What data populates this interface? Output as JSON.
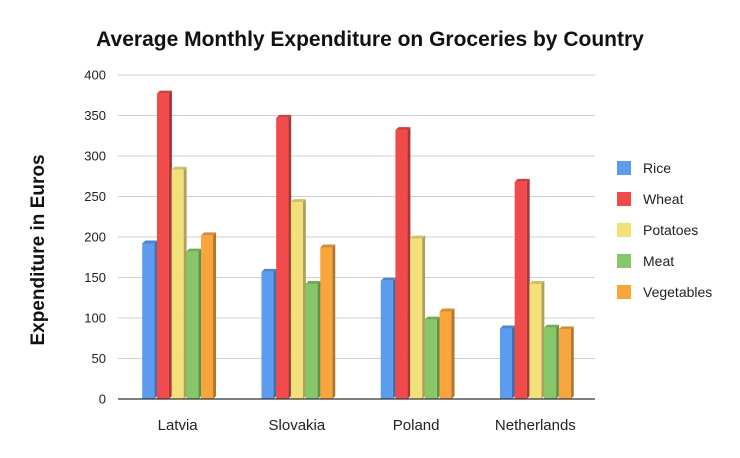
{
  "chart_data": {
    "type": "bar",
    "title": "Average Monthly Expenditure on Groceries by Country",
    "xlabel": "",
    "ylabel": "Expenditure in Euros",
    "ylim": [
      0,
      400
    ],
    "yticks": [
      0,
      50,
      100,
      150,
      200,
      250,
      300,
      350,
      400
    ],
    "grid": true,
    "legend_position": "right",
    "categories": [
      "Latvia",
      "Slovakia",
      "Poland",
      "Netherlands"
    ],
    "series": [
      {
        "name": "Rice",
        "color": "#5b9cf0",
        "values": [
          192,
          157,
          146,
          87
        ]
      },
      {
        "name": "Wheat",
        "color": "#f04a4a",
        "values": [
          377,
          347,
          332,
          268
        ]
      },
      {
        "name": "Potatoes",
        "color": "#f2e07a",
        "values": [
          283,
          243,
          198,
          142
        ]
      },
      {
        "name": "Meat",
        "color": "#86c769",
        "values": [
          182,
          142,
          98,
          88
        ]
      },
      {
        "name": "Vegetables",
        "color": "#f7a53c",
        "values": [
          202,
          187,
          108,
          86
        ]
      }
    ]
  }
}
